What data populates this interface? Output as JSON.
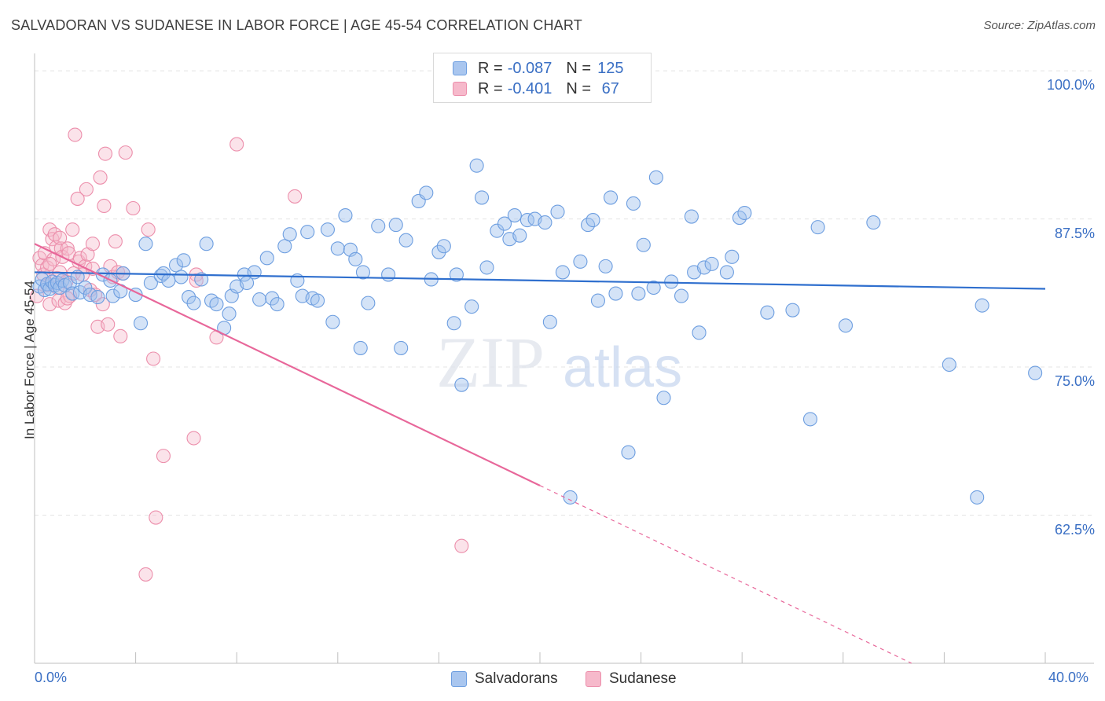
{
  "title": "SALVADORAN VS SUDANESE IN LABOR FORCE | AGE 45-54 CORRELATION CHART",
  "source": "Source: ZipAtlas.com",
  "watermark": "ZIPatlas",
  "legend": {
    "rows": [
      {
        "r_label": "R = ",
        "r_value": "-0.087",
        "n_label": "N = ",
        "n_value": "125",
        "color": "#a9c6ef",
        "border": "#6d9ee0"
      },
      {
        "r_label": "R = ",
        "r_value": "-0.401",
        "n_label": "N = ",
        "n_value": " 67",
        "color": "#f6b9cb",
        "border": "#ec8eab"
      }
    ]
  },
  "bottom_legend": [
    {
      "label": "Salvadorans",
      "color": "#a9c6ef",
      "border": "#6d9ee0"
    },
    {
      "label": "Sudanese",
      "color": "#f6b9cb",
      "border": "#ec8eab"
    }
  ],
  "colors": {
    "salvadoran_fill": "rgba(160,192,238,0.45)",
    "salvadoran_stroke": "#6d9ee0",
    "salvadoran_line": "#2f6fce",
    "sudanese_fill": "rgba(246,184,203,0.40)",
    "sudanese_stroke": "#ec8eab",
    "sudanese_line": "#e8679a",
    "grid": "#e4e4e4",
    "axis_text": "#3a6fc4"
  },
  "chart_data": {
    "type": "scatter",
    "xlabel": "",
    "ylabel": "In Labor Force | Age 45-54",
    "xlim": [
      0,
      40
    ],
    "ylim": [
      50,
      101.2
    ],
    "x_tick_labels": [
      "0.0%",
      "40.0%"
    ],
    "y_ticks": [
      62.5,
      75.0,
      87.5,
      100.0
    ],
    "y_tick_labels": [
      "62.5%",
      "75.0%",
      "87.5%",
      "100.0%"
    ],
    "grid": true,
    "legend_position": "top-center",
    "series": [
      {
        "name": "Salvadorans",
        "trend": {
          "x": [
            0,
            40
          ],
          "y": [
            83.0,
            81.6
          ],
          "solid_to": 40
        },
        "points": [
          [
            0.2,
            81.8
          ],
          [
            0.3,
            82.4
          ],
          [
            0.4,
            81.5
          ],
          [
            0.5,
            82.0
          ],
          [
            0.6,
            81.6
          ],
          [
            0.7,
            82.2
          ],
          [
            0.8,
            81.9
          ],
          [
            0.9,
            82.1
          ],
          [
            1.0,
            81.7
          ],
          [
            1.1,
            82.3
          ],
          [
            1.2,
            81.9
          ],
          [
            1.4,
            82.1
          ],
          [
            1.5,
            81.2
          ],
          [
            1.7,
            82.6
          ],
          [
            1.8,
            81.3
          ],
          [
            2.0,
            81.7
          ],
          [
            2.2,
            81.1
          ],
          [
            2.5,
            80.9
          ],
          [
            2.7,
            82.8
          ],
          [
            3.0,
            82.3
          ],
          [
            3.1,
            81.0
          ],
          [
            3.4,
            81.4
          ],
          [
            3.5,
            82.9
          ],
          [
            4.0,
            81.1
          ],
          [
            4.2,
            78.7
          ],
          [
            4.4,
            85.4
          ],
          [
            4.6,
            82.1
          ],
          [
            5.0,
            82.7
          ],
          [
            5.1,
            82.9
          ],
          [
            5.3,
            82.3
          ],
          [
            5.6,
            83.6
          ],
          [
            5.8,
            82.6
          ],
          [
            5.9,
            84.0
          ],
          [
            6.1,
            80.9
          ],
          [
            6.3,
            80.4
          ],
          [
            6.6,
            82.4
          ],
          [
            6.8,
            85.4
          ],
          [
            7.0,
            80.6
          ],
          [
            7.2,
            80.3
          ],
          [
            7.5,
            78.3
          ],
          [
            7.7,
            79.5
          ],
          [
            7.8,
            81.0
          ],
          [
            8.0,
            81.8
          ],
          [
            8.3,
            82.8
          ],
          [
            8.4,
            82.1
          ],
          [
            8.7,
            83.0
          ],
          [
            8.9,
            80.7
          ],
          [
            9.2,
            84.2
          ],
          [
            9.4,
            80.8
          ],
          [
            9.6,
            80.3
          ],
          [
            9.9,
            85.2
          ],
          [
            10.1,
            86.2
          ],
          [
            10.4,
            82.3
          ],
          [
            10.6,
            81.0
          ],
          [
            10.8,
            86.4
          ],
          [
            11.0,
            80.8
          ],
          [
            11.2,
            80.6
          ],
          [
            11.6,
            86.6
          ],
          [
            11.8,
            78.8
          ],
          [
            12.0,
            85.0
          ],
          [
            12.3,
            87.8
          ],
          [
            12.5,
            84.9
          ],
          [
            12.7,
            84.1
          ],
          [
            12.9,
            76.6
          ],
          [
            13.0,
            83.0
          ],
          [
            13.2,
            80.4
          ],
          [
            13.6,
            86.9
          ],
          [
            14.0,
            82.8
          ],
          [
            14.3,
            87.0
          ],
          [
            14.5,
            76.6
          ],
          [
            14.7,
            85.7
          ],
          [
            15.2,
            89.0
          ],
          [
            15.5,
            89.7
          ],
          [
            15.7,
            82.4
          ],
          [
            16.0,
            84.7
          ],
          [
            16.2,
            85.2
          ],
          [
            16.6,
            78.7
          ],
          [
            16.7,
            82.8
          ],
          [
            16.9,
            73.5
          ],
          [
            17.3,
            80.1
          ],
          [
            17.5,
            92.0
          ],
          [
            17.7,
            89.3
          ],
          [
            17.9,
            83.4
          ],
          [
            18.3,
            86.5
          ],
          [
            18.6,
            87.1
          ],
          [
            18.8,
            85.8
          ],
          [
            19.0,
            87.8
          ],
          [
            19.2,
            86.1
          ],
          [
            19.5,
            87.4
          ],
          [
            19.8,
            87.5
          ],
          [
            20.2,
            87.2
          ],
          [
            20.4,
            78.8
          ],
          [
            20.7,
            88.1
          ],
          [
            20.9,
            83.0
          ],
          [
            21.2,
            64.0
          ],
          [
            21.6,
            83.9
          ],
          [
            21.9,
            87.0
          ],
          [
            22.1,
            87.4
          ],
          [
            22.3,
            80.6
          ],
          [
            22.6,
            83.5
          ],
          [
            22.8,
            89.3
          ],
          [
            23.0,
            81.2
          ],
          [
            23.5,
            67.8
          ],
          [
            23.7,
            88.8
          ],
          [
            23.9,
            81.2
          ],
          [
            24.1,
            85.3
          ],
          [
            24.5,
            81.7
          ],
          [
            24.6,
            91.0
          ],
          [
            24.9,
            72.4
          ],
          [
            25.2,
            82.2
          ],
          [
            25.6,
            81.0
          ],
          [
            26.0,
            87.7
          ],
          [
            26.1,
            83.0
          ],
          [
            26.3,
            77.9
          ],
          [
            26.5,
            83.4
          ],
          [
            26.8,
            83.7
          ],
          [
            27.4,
            83.0
          ],
          [
            27.6,
            84.3
          ],
          [
            27.9,
            87.6
          ],
          [
            28.1,
            88.0
          ],
          [
            29.0,
            79.6
          ],
          [
            30.0,
            79.8
          ],
          [
            30.7,
            70.6
          ],
          [
            31.0,
            86.8
          ],
          [
            32.1,
            78.5
          ],
          [
            33.2,
            87.2
          ],
          [
            36.2,
            75.2
          ],
          [
            37.3,
            64.0
          ],
          [
            37.5,
            80.2
          ],
          [
            39.6,
            74.5
          ]
        ]
      },
      {
        "name": "Sudanese",
        "trend": {
          "x": [
            0,
            40
          ],
          "y": [
            85.4,
            44.6
          ],
          "solid_to": 20.0
        },
        "points": [
          [
            0.1,
            81.0
          ],
          [
            0.2,
            84.2
          ],
          [
            0.3,
            83.6
          ],
          [
            0.35,
            82.8
          ],
          [
            0.4,
            84.6
          ],
          [
            0.5,
            83.4
          ],
          [
            0.6,
            86.6
          ],
          [
            0.6,
            80.3
          ],
          [
            0.7,
            85.8
          ],
          [
            0.75,
            84.1
          ],
          [
            0.8,
            86.2
          ],
          [
            0.85,
            85.1
          ],
          [
            0.9,
            82.5
          ],
          [
            0.95,
            80.6
          ],
          [
            1.0,
            83.0
          ],
          [
            1.05,
            85.0
          ],
          [
            1.1,
            84.3
          ],
          [
            1.2,
            80.4
          ],
          [
            1.25,
            82.2
          ],
          [
            1.3,
            85.0
          ],
          [
            1.35,
            84.6
          ],
          [
            1.4,
            81.0
          ],
          [
            1.5,
            86.6
          ],
          [
            1.55,
            82.9
          ],
          [
            1.6,
            94.6
          ],
          [
            1.7,
            89.2
          ],
          [
            1.75,
            83.9
          ],
          [
            1.8,
            84.2
          ],
          [
            1.9,
            82.8
          ],
          [
            2.0,
            83.5
          ],
          [
            2.05,
            90.0
          ],
          [
            2.1,
            84.5
          ],
          [
            2.2,
            81.5
          ],
          [
            2.3,
            85.4
          ],
          [
            2.4,
            81.1
          ],
          [
            2.5,
            78.4
          ],
          [
            2.6,
            91.0
          ],
          [
            2.7,
            80.3
          ],
          [
            2.75,
            88.6
          ],
          [
            2.8,
            93.0
          ],
          [
            2.9,
            78.6
          ],
          [
            3.0,
            83.5
          ],
          [
            3.1,
            82.6
          ],
          [
            3.2,
            85.6
          ],
          [
            3.3,
            83.0
          ],
          [
            3.4,
            77.6
          ],
          [
            3.6,
            93.1
          ],
          [
            3.9,
            88.4
          ],
          [
            4.5,
            86.6
          ],
          [
            4.7,
            75.7
          ],
          [
            5.1,
            67.5
          ],
          [
            4.8,
            62.3
          ],
          [
            4.4,
            57.5
          ],
          [
            6.4,
            82.8
          ],
          [
            6.4,
            82.3
          ],
          [
            7.2,
            77.5
          ],
          [
            6.3,
            69.0
          ],
          [
            8.0,
            93.8
          ],
          [
            10.3,
            89.4
          ],
          [
            16.9,
            59.9
          ],
          [
            0.6,
            83.7
          ],
          [
            1.0,
            85.9
          ],
          [
            0.5,
            81.9
          ],
          [
            0.9,
            81.7
          ],
          [
            1.3,
            80.8
          ],
          [
            2.3,
            83.3
          ],
          [
            3.5,
            82.9
          ]
        ]
      }
    ]
  }
}
